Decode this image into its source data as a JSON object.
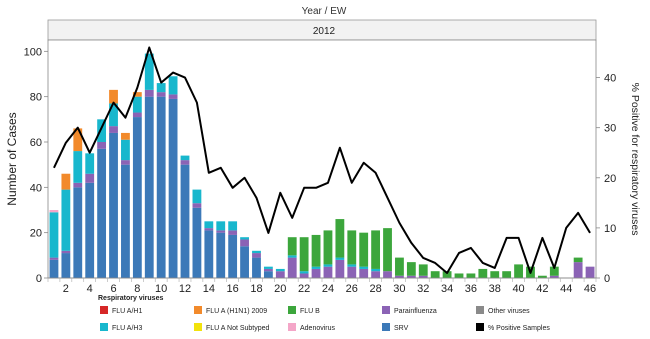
{
  "chart_data": {
    "type": "bar",
    "header": "Year / EW",
    "year_label": "2012",
    "ylabel": "Number of Cases",
    "y2label": "% Positive for respiratory viruses",
    "ylim": [
      0,
      105
    ],
    "y2lim": [
      0,
      47.5
    ],
    "yticks": [
      0,
      20,
      40,
      60,
      80,
      100
    ],
    "y2ticks": [
      0,
      10,
      20,
      30,
      40
    ],
    "x": [
      1,
      2,
      3,
      4,
      5,
      6,
      7,
      8,
      9,
      10,
      11,
      12,
      13,
      14,
      15,
      16,
      17,
      18,
      19,
      20,
      21,
      22,
      23,
      24,
      25,
      26,
      27,
      28,
      29,
      30,
      31,
      32,
      33,
      34,
      35,
      36,
      37,
      38,
      39,
      40,
      41,
      42,
      43,
      44,
      45,
      46
    ],
    "xtick_labels": [
      "2",
      "4",
      "6",
      "8",
      "10",
      "12",
      "14",
      "16",
      "18",
      "20",
      "22",
      "24",
      "26",
      "28",
      "30",
      "32",
      "34",
      "36",
      "38",
      "40",
      "42",
      "44",
      "46"
    ],
    "legend_title": "Respiratory viruses",
    "series": [
      {
        "name": "SRV",
        "color": "#3c79b8",
        "values": [
          8,
          11,
          40,
          42,
          57,
          64,
          50,
          71,
          80,
          80,
          79,
          50,
          31,
          21,
          20,
          19,
          14,
          9,
          3,
          0,
          0,
          0,
          0,
          0,
          0,
          0,
          0,
          0,
          0,
          0,
          0,
          0,
          0,
          0,
          0,
          0,
          0,
          0,
          0,
          0,
          0,
          0,
          0,
          0,
          0,
          0
        ]
      },
      {
        "name": "Parainfluenza",
        "color": "#8b63b5",
        "values": [
          1,
          1,
          2,
          4,
          3,
          3,
          2,
          2,
          3,
          2,
          2,
          2,
          2,
          1,
          1,
          2,
          3,
          2,
          1,
          3,
          9,
          2,
          4,
          5,
          8,
          5,
          4,
          3,
          3,
          1,
          1,
          1,
          0,
          0,
          0,
          0,
          0,
          0,
          0,
          0,
          0,
          0,
          1,
          0,
          7,
          5
        ]
      },
      {
        "name": "FLU A/H3",
        "color": "#18b7cd",
        "values": [
          20,
          27,
          14,
          9,
          10,
          10,
          9,
          7,
          16,
          4,
          8,
          2,
          6,
          3,
          4,
          4,
          1,
          1,
          1,
          1,
          1,
          1,
          1,
          1,
          1,
          1,
          1,
          1,
          0,
          0,
          0,
          0,
          0,
          0,
          0,
          0,
          0,
          0,
          0,
          0,
          0,
          0,
          0,
          0,
          0,
          0
        ]
      },
      {
        "name": "FLU A (H1N1) 2009",
        "color": "#f28a2b",
        "values": [
          0,
          7,
          10,
          0,
          0,
          6,
          3,
          2,
          0,
          0,
          0,
          0,
          0,
          0,
          0,
          0,
          0,
          0,
          0,
          0,
          0,
          0,
          0,
          0,
          0,
          0,
          0,
          0,
          0,
          0,
          0,
          0,
          0,
          0,
          0,
          0,
          0,
          0,
          0,
          0,
          0,
          0,
          0,
          0,
          0,
          0
        ]
      },
      {
        "name": "FLU B",
        "color": "#3ca63c",
        "values": [
          0,
          0,
          0,
          0,
          0,
          0,
          0,
          0,
          0,
          0,
          0,
          0,
          0,
          0,
          0,
          0,
          0,
          0,
          0,
          0,
          8,
          15,
          14,
          15,
          17,
          15,
          15,
          17,
          19,
          8,
          6,
          5,
          3,
          3,
          2,
          2,
          4,
          3,
          3,
          6,
          5,
          1,
          4,
          0,
          2,
          0
        ]
      },
      {
        "name": "FLU A/H1",
        "color": "#d62728",
        "values": [
          0,
          0,
          0,
          0,
          0,
          0,
          0,
          0,
          0,
          0,
          0,
          0,
          0,
          0,
          0,
          0,
          0,
          0,
          0,
          0,
          0,
          0,
          0,
          0,
          0,
          0,
          0,
          0,
          0,
          0,
          0,
          0,
          0,
          0,
          0,
          0,
          0,
          0,
          0,
          0,
          0,
          0,
          0,
          0,
          0,
          0
        ]
      },
      {
        "name": "FLU A Not Subtyped",
        "color": "#f2e20c",
        "values": [
          0,
          0,
          0,
          0,
          0,
          0,
          0,
          0,
          0,
          0,
          0,
          0,
          0,
          0,
          0,
          0,
          0,
          0,
          0,
          0,
          0,
          0,
          0,
          0,
          0,
          0,
          0,
          0,
          0,
          0,
          0,
          0,
          0,
          0,
          0,
          0,
          0,
          0,
          0,
          0,
          0,
          0,
          0,
          0,
          0,
          0
        ]
      },
      {
        "name": "Adenovirus",
        "color": "#f4a6c8",
        "values": [
          1,
          0,
          0,
          0,
          0,
          0,
          0,
          0,
          0,
          0,
          0,
          0,
          0,
          0,
          0,
          0,
          0,
          0,
          0,
          0,
          0,
          0,
          0,
          0,
          0,
          0,
          0,
          0,
          0,
          0,
          0,
          0,
          0,
          0,
          0,
          0,
          0,
          0,
          0,
          0,
          0,
          0,
          0,
          0,
          0,
          0
        ]
      },
      {
        "name": "Other viruses",
        "color": "#8a8a8a",
        "values": [
          0,
          0,
          0,
          0,
          0,
          0,
          0,
          0,
          0,
          0,
          0,
          0,
          0,
          0,
          0,
          0,
          0,
          0,
          0,
          0,
          0,
          0,
          0,
          0,
          0,
          0,
          0,
          0,
          0,
          0,
          0,
          0,
          0,
          0,
          0,
          0,
          0,
          0,
          0,
          0,
          0,
          0,
          0,
          0,
          0,
          0
        ]
      }
    ],
    "line": {
      "name": "% Positive Samples",
      "color": "#000000",
      "values": [
        22,
        27,
        30,
        25,
        30,
        35,
        32,
        38,
        46,
        39,
        41,
        40,
        35,
        21,
        22,
        18,
        20,
        16,
        9,
        17,
        12,
        18,
        18,
        19,
        26,
        19,
        23,
        21,
        16,
        11,
        7,
        4,
        3,
        1,
        5,
        6,
        3,
        2,
        8,
        8,
        1,
        8,
        2,
        10,
        13,
        9
      ]
    },
    "legend_order": [
      "FLU A/H1",
      "FLU A (H1N1) 2009",
      "FLU B",
      "Parainfluenza",
      "Other viruses",
      "FLU A/H3",
      "FLU A Not Subtyped",
      "Adenovirus",
      "SRV",
      "% Positive Samples"
    ]
  }
}
